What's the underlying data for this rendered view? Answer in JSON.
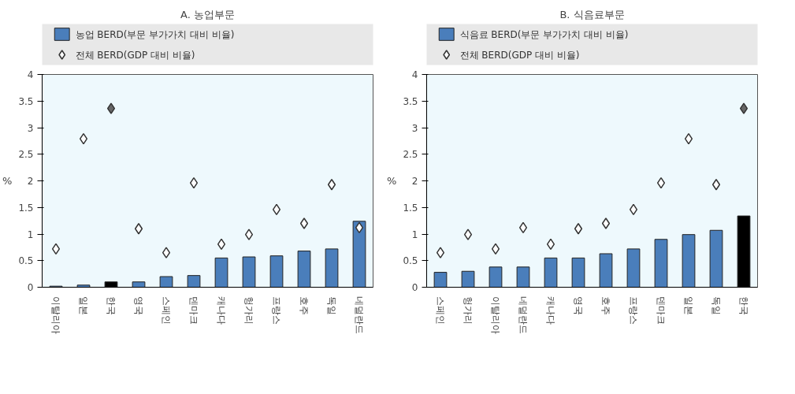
{
  "chart_data": [
    {
      "type": "bar",
      "title": "A. 농업부문",
      "ylabel": "%",
      "legend": "top",
      "marker": "diamond",
      "categories": [
        "이탈리아",
        "일본",
        "한국",
        "영국",
        "스페인",
        "덴마크",
        "캐나다",
        "헝가리",
        "프랑스",
        "호주",
        "독일",
        "네덜란드"
      ],
      "series": [
        {
          "name": "농업 BERD(부문 부가가치 대비 비율)",
          "color": "#4a7ebb",
          "colors": [
            "#4a7ebb",
            "#4a7ebb",
            "#000000",
            "#4a7ebb",
            "#4a7ebb",
            "#4a7ebb",
            "#4a7ebb",
            "#4a7ebb",
            "#4a7ebb",
            "#4a7ebb",
            "#4a7ebb",
            "#4a7ebb"
          ],
          "values": [
            0.02,
            0.04,
            0.1,
            0.1,
            0.2,
            0.22,
            0.55,
            0.57,
            0.59,
            0.68,
            0.72,
            1.24
          ]
        },
        {
          "name": "전체 BERD(GDP 대비 비율)",
          "type": "scatter",
          "color": "#ffffff",
          "colors": [
            "#ffffff",
            "#ffffff",
            "#666666",
            "#ffffff",
            "#ffffff",
            "#ffffff",
            "#ffffff",
            "#ffffff",
            "#ffffff",
            "#ffffff",
            "#ffffff",
            "#ffffff"
          ],
          "values": [
            0.72,
            2.79,
            3.36,
            1.1,
            0.65,
            1.96,
            0.81,
            0.99,
            1.46,
            1.2,
            1.93,
            1.12
          ]
        }
      ],
      "ylim": [
        0,
        4
      ],
      "yticks": [
        0,
        0.5,
        1,
        1.5,
        2,
        2.5,
        3,
        3.5,
        4
      ],
      "grid": false
    },
    {
      "type": "bar",
      "title": "B. 식음료부문",
      "ylabel": "%",
      "legend": "top",
      "marker": "diamond",
      "categories": [
        "스페인",
        "헝가리",
        "이탈리아",
        "네덜란드",
        "캐나다",
        "영국",
        "호주",
        "프랑스",
        "덴마크",
        "일본",
        "독일",
        "한국"
      ],
      "series": [
        {
          "name": "식음료 BERD(부문 부가가치 대비 비율)",
          "color": "#4a7ebb",
          "colors": [
            "#4a7ebb",
            "#4a7ebb",
            "#4a7ebb",
            "#4a7ebb",
            "#4a7ebb",
            "#4a7ebb",
            "#4a7ebb",
            "#4a7ebb",
            "#4a7ebb",
            "#4a7ebb",
            "#4a7ebb",
            "#000000"
          ],
          "values": [
            0.28,
            0.3,
            0.38,
            0.38,
            0.55,
            0.55,
            0.63,
            0.72,
            0.9,
            0.99,
            1.07,
            1.34
          ]
        },
        {
          "name": "전체 BERD(GDP 대비 비율)",
          "type": "scatter",
          "color": "#ffffff",
          "colors": [
            "#ffffff",
            "#ffffff",
            "#ffffff",
            "#ffffff",
            "#ffffff",
            "#ffffff",
            "#ffffff",
            "#ffffff",
            "#ffffff",
            "#ffffff",
            "#ffffff",
            "#666666"
          ],
          "values": [
            0.65,
            0.99,
            0.72,
            1.12,
            0.81,
            1.1,
            1.2,
            1.46,
            1.96,
            2.79,
            1.93,
            3.36
          ]
        }
      ],
      "ylim": [
        0,
        4
      ],
      "yticks": [
        0,
        0.5,
        1,
        1.5,
        2,
        2.5,
        3,
        3.5,
        4
      ],
      "grid": false
    }
  ]
}
